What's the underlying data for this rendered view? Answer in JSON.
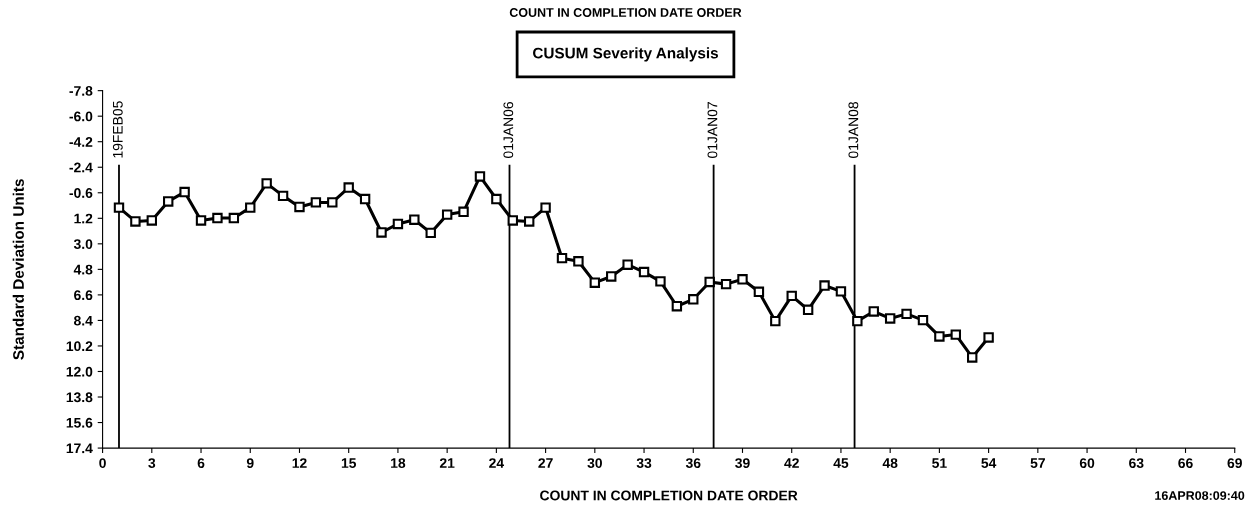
{
  "chart_data": {
    "type": "line",
    "title": "CUSUM Severity Analysis",
    "subtitle": "COUNT IN COMPLETION DATE ORDER",
    "xlabel": "COUNT IN COMPLETION DATE ORDER",
    "ylabel": "Standard Deviation Units",
    "annotations": [
      "16APR08:09:40"
    ],
    "x": [
      1,
      2,
      3,
      4,
      5,
      6,
      7,
      8,
      9,
      10,
      11,
      12,
      13,
      14,
      15,
      16,
      17,
      18,
      19,
      20,
      21,
      22,
      23,
      24,
      25,
      26,
      27,
      28,
      29,
      30,
      31,
      32,
      33,
      34,
      35,
      36,
      37,
      38,
      39,
      40,
      41,
      42,
      43,
      44,
      45,
      46,
      47,
      48,
      49,
      50,
      51,
      52,
      53,
      54
    ],
    "series": [
      {
        "color": "#000000",
        "values": [
          0.45,
          1.42,
          1.35,
          0.01,
          -0.65,
          1.35,
          1.18,
          1.18,
          0.45,
          -1.26,
          -0.38,
          0.4,
          0.08,
          0.08,
          -0.97,
          -0.16,
          2.2,
          1.6,
          1.3,
          2.23,
          0.94,
          0.74,
          -1.75,
          -0.16,
          1.35,
          1.42,
          0.45,
          4.01,
          4.23,
          5.74,
          5.3,
          4.47,
          4.99,
          5.65,
          7.4,
          6.91,
          5.69,
          5.84,
          5.5,
          6.38,
          8.45,
          6.67,
          7.65,
          5.94,
          6.35,
          8.45,
          7.77,
          8.26,
          7.94,
          8.38,
          9.53,
          9.4,
          11.01,
          9.6
        ]
      }
    ],
    "xlim": [
      0,
      69
    ],
    "xticks": [
      0,
      3,
      6,
      9,
      12,
      15,
      18,
      21,
      24,
      27,
      30,
      33,
      36,
      39,
      42,
      45,
      48,
      51,
      54,
      57,
      60,
      63,
      66,
      69
    ],
    "ylim": [
      17.4,
      -7.8
    ],
    "yticks": [
      -7.8,
      {
        "value": -6,
        "label": "-6.0"
      },
      -4.2,
      -2.4,
      -0.6,
      1.2,
      {
        "value": 3,
        "label": "3.0"
      },
      4.8,
      6.6,
      8.4,
      10.2,
      {
        "value": 12,
        "label": "12.0"
      },
      13.8,
      15.6,
      17.4
    ],
    "ref_lines": [
      {
        "axis": "x",
        "value": 1,
        "label": "19FEB05",
        "color": "#000000"
      },
      {
        "axis": "x",
        "value": 24.8,
        "label": "01JAN06",
        "color": "#000000"
      },
      {
        "axis": "x",
        "value": 37.24,
        "label": "01JAN07",
        "color": "#000000"
      },
      {
        "axis": "x",
        "value": 45.83,
        "label": "01JAN08",
        "color": "#000000"
      }
    ],
    "marker": "square",
    "line_style": "solid",
    "grid": false,
    "legend": false
  }
}
